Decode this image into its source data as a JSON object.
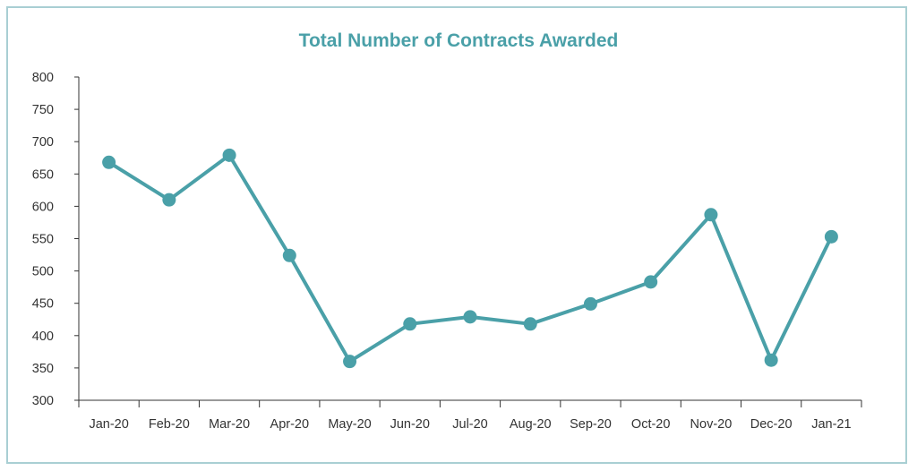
{
  "chart_data": {
    "type": "line",
    "title": "Total Number of Contracts Awarded",
    "xlabel": "",
    "ylabel": "",
    "categories": [
      "Jan-20",
      "Feb-20",
      "Mar-20",
      "Apr-20",
      "May-20",
      "Jun-20",
      "Jul-20",
      "Aug-20",
      "Sep-20",
      "Oct-20",
      "Nov-20",
      "Dec-20",
      "Jan-21"
    ],
    "series": [
      {
        "values": [
          668,
          610,
          679,
          524,
          360,
          418,
          429,
          418,
          449,
          483,
          587,
          362,
          553
        ]
      }
    ],
    "ylim": [
      300,
      800
    ],
    "yticks": [
      300,
      350,
      400,
      450,
      500,
      550,
      600,
      650,
      700,
      750,
      800
    ],
    "grid": false,
    "legend": "none",
    "colors": {
      "line": "#4aa0a8",
      "title": "#4aa0a8",
      "frame": "#a9cfd3",
      "axis": "#333333"
    }
  }
}
